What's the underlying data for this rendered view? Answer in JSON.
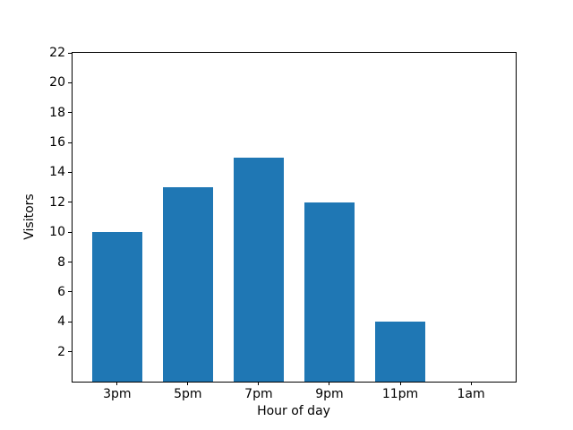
{
  "chart_data": {
    "type": "bar",
    "title": "",
    "xlabel": "Hour of day",
    "ylabel": "Visitors",
    "categories": [
      "3pm",
      "5pm",
      "7pm",
      "9pm",
      "11pm",
      "1am"
    ],
    "values": [
      10,
      13,
      15,
      12,
      4,
      0
    ],
    "yticks": [
      2,
      4,
      6,
      8,
      10,
      12,
      14,
      16,
      18,
      20,
      22
    ],
    "ylim": [
      0,
      22
    ],
    "bar_color": "#1f77b4",
    "background_color": "#ffffff",
    "grid": false,
    "legend": false,
    "legend_position": "none"
  }
}
